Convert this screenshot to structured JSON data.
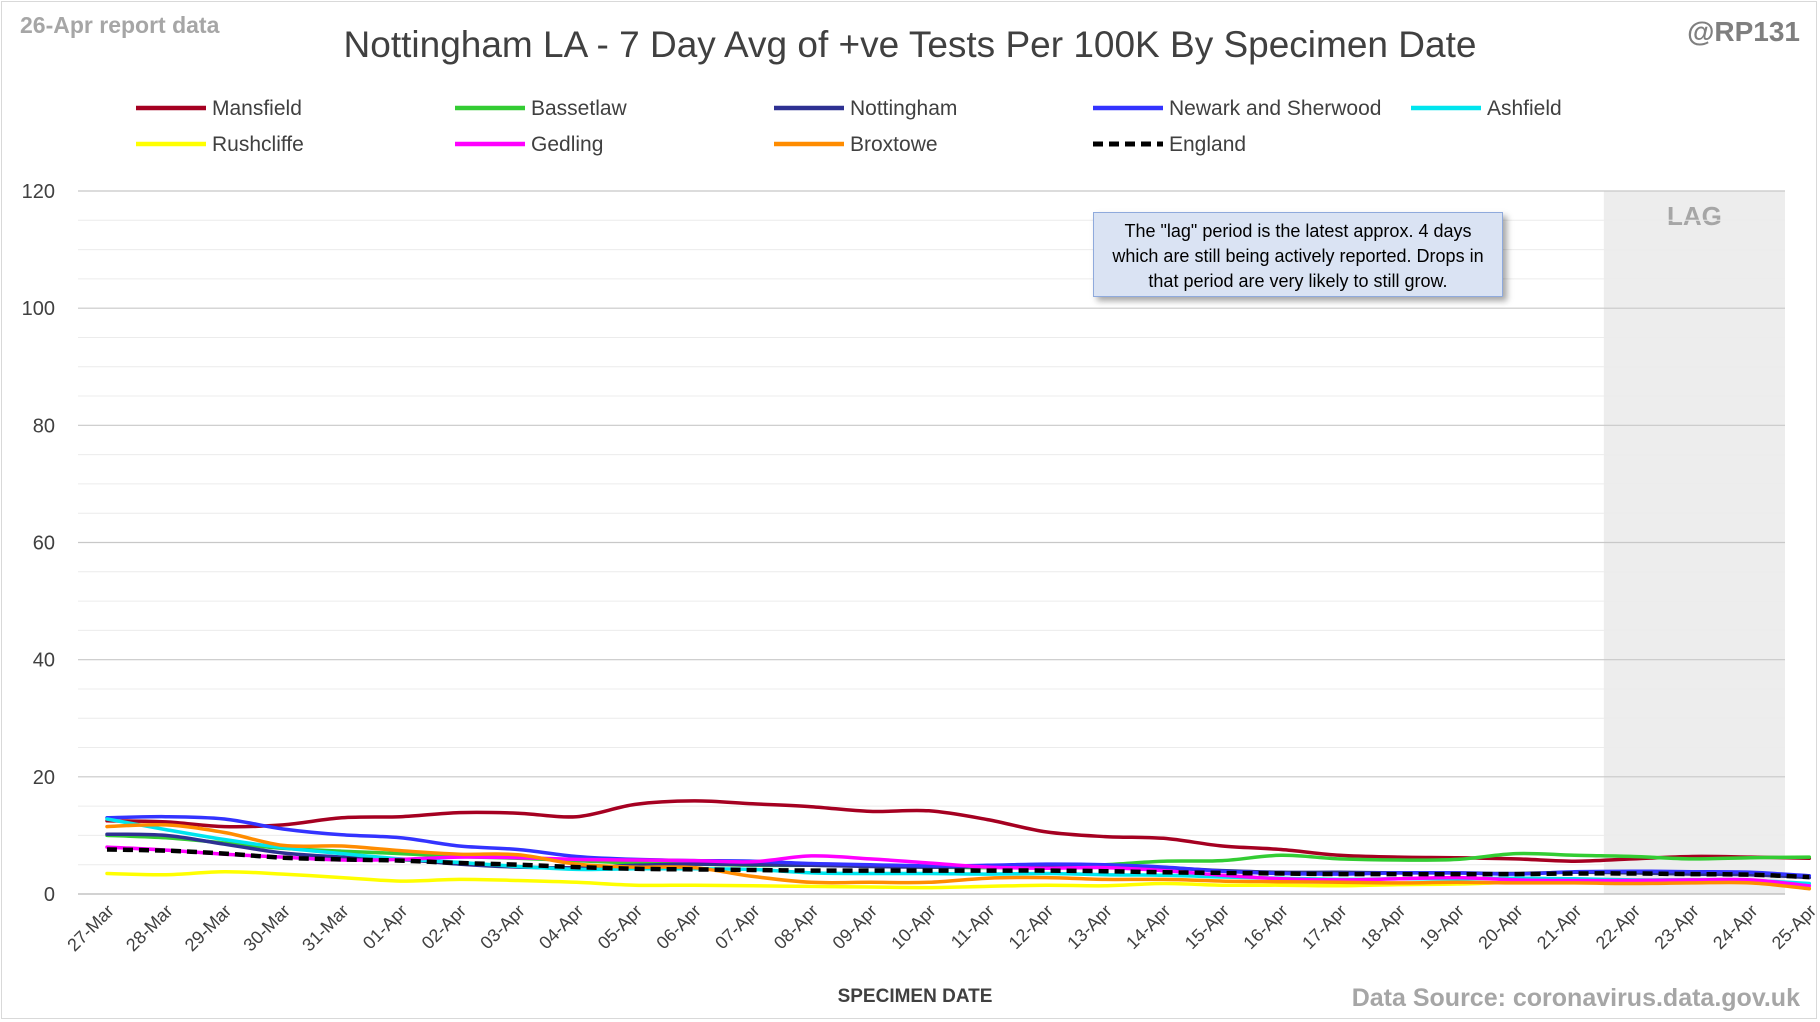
{
  "header": {
    "report_label": "26-Apr report data",
    "handle": "@RP131",
    "title": "Nottingham LA - 7 Day Avg of +ve Tests Per 100K By Specimen Date"
  },
  "footer": {
    "source": "Data Source: coronavirus.data.gov.uk"
  },
  "annotation": "The \"lag\" period is the latest approx. 4 days which are still being actively reported.  Drops in that period are very likely to still grow.",
  "chart_data": {
    "type": "line",
    "title": "Nottingham LA - 7 Day Avg of +ve Tests Per 100K By Specimen Date",
    "xlabel": "SPECIMEN DATE",
    "ylabel": "",
    "ylim": [
      0,
      120
    ],
    "yticks": [
      0,
      20,
      40,
      60,
      80,
      100,
      120
    ],
    "grid": true,
    "legend_position": "top",
    "lag_label": "LAG",
    "lag_start": "22-Apr",
    "x": [
      "27-Mar",
      "28-Mar",
      "29-Mar",
      "30-Mar",
      "31-Mar",
      "01-Apr",
      "02-Apr",
      "03-Apr",
      "04-Apr",
      "05-Apr",
      "06-Apr",
      "07-Apr",
      "08-Apr",
      "09-Apr",
      "10-Apr",
      "11-Apr",
      "12-Apr",
      "13-Apr",
      "14-Apr",
      "15-Apr",
      "16-Apr",
      "17-Apr",
      "18-Apr",
      "19-Apr",
      "20-Apr",
      "21-Apr",
      "22-Apr",
      "23-Apr",
      "24-Apr",
      "25-Apr"
    ],
    "series": [
      {
        "name": "Mansfield",
        "color": "#a50021",
        "dashed": false,
        "values": [
          12.5,
          12.3,
          11.5,
          11.8,
          13.0,
          13.2,
          13.9,
          13.8,
          13.2,
          15.3,
          15.9,
          15.4,
          14.9,
          14.1,
          14.2,
          12.7,
          10.6,
          9.8,
          9.5,
          8.2,
          7.6,
          6.6,
          6.3,
          6.2,
          6.0,
          5.6,
          6.0,
          6.4,
          6.3,
          6.1
        ]
      },
      {
        "name": "Bassetlaw",
        "color": "#33cc33",
        "dashed": false,
        "values": [
          10.0,
          9.6,
          8.7,
          7.8,
          7.3,
          6.9,
          6.4,
          6.1,
          5.7,
          5.3,
          5.1,
          4.9,
          4.9,
          4.8,
          4.6,
          4.5,
          4.7,
          5.0,
          5.6,
          5.7,
          6.6,
          6.0,
          5.8,
          5.9,
          6.9,
          6.6,
          6.4,
          6.0,
          6.2,
          6.3
        ]
      },
      {
        "name": "Nottingham",
        "color": "#2e3192",
        "dashed": false,
        "values": [
          10.2,
          10.0,
          8.5,
          7.0,
          6.3,
          5.9,
          5.1,
          4.6,
          4.5,
          4.9,
          5.1,
          5.0,
          4.9,
          4.7,
          4.6,
          4.7,
          4.8,
          4.9,
          4.5,
          4.0,
          3.7,
          3.7,
          3.6,
          3.6,
          3.5,
          3.7,
          3.6,
          3.4,
          3.3,
          2.8
        ]
      },
      {
        "name": "Newark and Sherwood",
        "color": "#3333ff",
        "dashed": false,
        "values": [
          13.0,
          13.2,
          12.8,
          11.1,
          10.1,
          9.6,
          8.2,
          7.6,
          6.4,
          5.9,
          5.7,
          5.6,
          5.2,
          5.0,
          4.8,
          4.9,
          5.1,
          5.0,
          4.6,
          3.9,
          3.5,
          3.4,
          3.6,
          3.6,
          3.4,
          3.8,
          3.9,
          3.8,
          3.7,
          3.1
        ]
      },
      {
        "name": "Ashfield",
        "color": "#00e5ee",
        "dashed": false,
        "values": [
          12.8,
          11.0,
          9.3,
          7.9,
          6.9,
          6.0,
          5.4,
          4.7,
          4.2,
          4.3,
          4.3,
          4.2,
          3.6,
          3.5,
          3.5,
          3.4,
          3.5,
          3.3,
          3.2,
          2.9,
          2.7,
          2.5,
          2.6,
          2.6,
          2.7,
          2.6,
          2.4,
          2.4,
          2.3,
          1.8
        ]
      },
      {
        "name": "Rushcliffe",
        "color": "#ffff00",
        "dashed": false,
        "values": [
          3.5,
          3.3,
          3.8,
          3.4,
          2.8,
          2.2,
          2.5,
          2.3,
          2.0,
          1.5,
          1.5,
          1.4,
          1.3,
          1.2,
          1.1,
          1.3,
          1.5,
          1.4,
          1.8,
          1.5,
          1.5,
          1.4,
          1.6,
          1.7,
          2.0,
          2.1,
          2.2,
          2.2,
          1.9,
          1.1
        ]
      },
      {
        "name": "Gedling",
        "color": "#ff00ff",
        "dashed": false,
        "values": [
          8.0,
          7.5,
          6.8,
          6.3,
          5.8,
          5.9,
          6.3,
          6.2,
          5.9,
          5.8,
          5.7,
          5.5,
          6.5,
          6.0,
          5.3,
          4.6,
          4.4,
          4.5,
          4.0,
          3.2,
          2.6,
          2.4,
          2.6,
          2.8,
          2.4,
          2.3,
          2.3,
          2.4,
          2.4,
          1.4
        ]
      },
      {
        "name": "Broxtowe",
        "color": "#ff8c00",
        "dashed": false,
        "values": [
          11.5,
          11.8,
          10.5,
          8.3,
          8.2,
          7.4,
          6.8,
          6.7,
          5.1,
          4.6,
          4.5,
          3.0,
          2.0,
          2.0,
          2.0,
          2.7,
          2.8,
          2.5,
          2.5,
          2.2,
          2.1,
          2.0,
          1.9,
          2.0,
          1.9,
          1.9,
          1.8,
          1.9,
          1.9,
          0.9
        ]
      },
      {
        "name": "England",
        "color": "#000000",
        "dashed": true,
        "values": [
          7.6,
          7.4,
          6.9,
          6.2,
          5.9,
          5.7,
          5.3,
          5.0,
          4.6,
          4.3,
          4.2,
          4.1,
          4.0,
          4.0,
          4.0,
          4.0,
          4.0,
          3.9,
          3.7,
          3.6,
          3.5,
          3.4,
          3.4,
          3.4,
          3.4,
          3.5,
          3.5,
          3.4,
          3.3,
          2.9
        ]
      }
    ]
  }
}
